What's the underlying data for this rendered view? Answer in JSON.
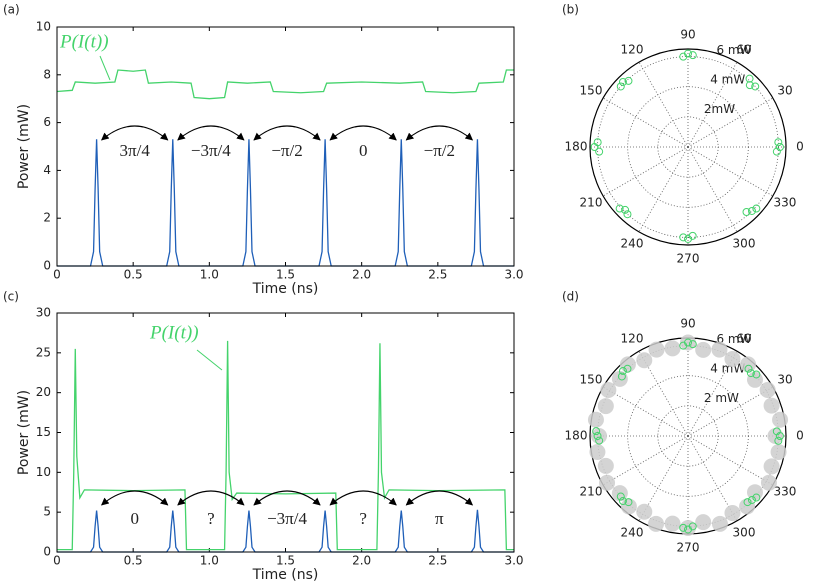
{
  "chart_data": [
    {
      "type": "line",
      "panel": "(a)",
      "xlabel": "Time (ns)",
      "ylabel": "Power (mW)",
      "xlim": [
        0,
        3
      ],
      "ylim": [
        0,
        10
      ],
      "xticks": [
        0,
        0.5,
        {
          "value": 1,
          "label": "1.0"
        },
        1.5,
        {
          "value": 2,
          "label": "2.0"
        },
        2.5,
        {
          "value": 3,
          "label": "3.0"
        }
      ],
      "yticks": [
        0,
        2,
        4,
        6,
        8,
        10
      ],
      "series": [
        {
          "name": "P(I(t))",
          "color": "#44d36b",
          "x": [
            0,
            0.1,
            0.12,
            0.25,
            0.38,
            0.4,
            0.5,
            0.58,
            0.6,
            0.75,
            0.88,
            0.9,
            1.0,
            1.1,
            1.12,
            1.25,
            1.4,
            1.42,
            1.6,
            1.75,
            1.77,
            2.0,
            2.25,
            2.4,
            2.42,
            2.6,
            2.75,
            2.77,
            2.93,
            2.95,
            3.0
          ],
          "values": [
            7.3,
            7.35,
            7.7,
            7.65,
            7.7,
            8.2,
            8.15,
            8.2,
            7.65,
            7.7,
            7.65,
            7.05,
            7.0,
            7.05,
            7.7,
            7.65,
            7.7,
            7.3,
            7.25,
            7.3,
            7.65,
            7.7,
            7.65,
            7.7,
            7.3,
            7.25,
            7.3,
            7.65,
            7.7,
            8.2,
            8.2
          ]
        },
        {
          "color": "#1f5fb8",
          "x": [
            0,
            0.22,
            0.24,
            0.25,
            0.26,
            0.27,
            0.28,
            0.3,
            0.72,
            0.74,
            0.75,
            0.76,
            0.77,
            0.78,
            0.8,
            1.22,
            1.24,
            1.25,
            1.26,
            1.27,
            1.28,
            1.3,
            1.72,
            1.74,
            1.75,
            1.76,
            1.77,
            1.78,
            1.8,
            2.22,
            2.24,
            2.25,
            2.26,
            2.27,
            2.28,
            2.3,
            2.72,
            2.74,
            2.75,
            2.76,
            2.77,
            2.78,
            2.8,
            3.0
          ],
          "values": [
            0,
            0,
            0.6,
            3.2,
            5.3,
            3.2,
            0.6,
            0,
            0,
            0.6,
            3.2,
            5.3,
            3.2,
            0.6,
            0,
            0,
            0.6,
            3.2,
            5.3,
            3.2,
            0.6,
            0,
            0,
            0.6,
            3.2,
            5.3,
            3.2,
            0.6,
            0,
            0,
            0.6,
            3.2,
            5.3,
            3.2,
            0.6,
            0,
            0,
            0.6,
            3.2,
            5.3,
            3.2,
            0.6,
            0,
            0
          ]
        }
      ],
      "annotations": [
        "3π/4",
        "−3π/4",
        "−π/2",
        "0",
        "−π/2"
      ]
    },
    {
      "type": "polar-scatter",
      "panel": "(b)",
      "rlim": [
        0,
        6.5
      ],
      "rticks": [
        {
          "value": 2,
          "label": "2mW"
        },
        {
          "value": 4,
          "label": "4 mW"
        },
        {
          "value": 6,
          "label": "6 mW"
        }
      ],
      "thetaticks": [
        0,
        30,
        60,
        90,
        120,
        150,
        180,
        210,
        240,
        270,
        300,
        330
      ],
      "series": [
        {
          "color": "#44d36b",
          "marker": "open",
          "theta": [
            357,
            0,
            3,
            42,
            45,
            48,
            87,
            90,
            93,
            132,
            135,
            138,
            177,
            180,
            183,
            222,
            225,
            228,
            267,
            270,
            273,
            312,
            315,
            318
          ],
          "r": [
            5.9,
            6.1,
            6.0,
            6.0,
            5.8,
            6.1,
            6.1,
            6.2,
            6.0,
            5.9,
            6.1,
            6.0,
            6.0,
            6.2,
            5.9,
            6.1,
            5.9,
            6.0,
            6.0,
            6.1,
            5.9,
            5.8,
            6.0,
            6.1
          ]
        }
      ]
    },
    {
      "type": "line",
      "panel": "(c)",
      "xlabel": "Time (ns)",
      "ylabel": "Power (mW)",
      "xlim": [
        0,
        3
      ],
      "ylim": [
        0,
        30
      ],
      "xticks": [
        0,
        0.5,
        {
          "value": 1,
          "label": "1.0"
        },
        1.5,
        {
          "value": 2,
          "label": "2.0"
        },
        2.5,
        {
          "value": 3,
          "label": "3.0"
        }
      ],
      "yticks": [
        0,
        5,
        10,
        15,
        20,
        25,
        30
      ],
      "series": [
        {
          "name": "P(I(t))",
          "color": "#44d36b",
          "x": [
            0,
            0.1,
            0.11,
            0.12,
            0.13,
            0.15,
            0.18,
            0.5,
            0.84,
            0.85,
            1.1,
            1.11,
            1.12,
            1.13,
            1.15,
            1.18,
            1.5,
            1.83,
            1.84,
            2.1,
            2.11,
            2.12,
            2.13,
            2.15,
            2.18,
            2.5,
            2.94,
            2.95,
            3.0
          ],
          "values": [
            0.3,
            0.3,
            10,
            25.5,
            12,
            6.8,
            7.8,
            7.7,
            7.8,
            0.3,
            0.3,
            10,
            26.5,
            10,
            6.6,
            7.4,
            7.3,
            7.4,
            0.3,
            0.3,
            10,
            26.2,
            10,
            6.8,
            7.8,
            7.7,
            7.8,
            0.3,
            0.3
          ]
        },
        {
          "color": "#1f5fb8",
          "x": [
            0,
            0.22,
            0.24,
            0.25,
            0.26,
            0.27,
            0.28,
            0.3,
            0.72,
            0.74,
            0.75,
            0.76,
            0.77,
            0.78,
            0.8,
            1.22,
            1.24,
            1.25,
            1.26,
            1.27,
            1.28,
            1.3,
            1.72,
            1.74,
            1.75,
            1.76,
            1.77,
            1.78,
            1.8,
            2.22,
            2.24,
            2.25,
            2.26,
            2.27,
            2.28,
            2.3,
            2.72,
            2.74,
            2.75,
            2.76,
            2.77,
            2.78,
            2.8,
            3.0
          ],
          "values": [
            0,
            0,
            0.6,
            3.2,
            5.2,
            3.2,
            0.6,
            0,
            0,
            0.6,
            3.2,
            5.2,
            3.2,
            0.6,
            0,
            0,
            0.6,
            3.2,
            5.2,
            3.2,
            0.6,
            0,
            0,
            0.6,
            3.2,
            5.2,
            3.2,
            0.6,
            0,
            0,
            0.6,
            3.2,
            5.2,
            3.2,
            0.6,
            0,
            0,
            0.6,
            3.2,
            5.3,
            3.2,
            0.6,
            0,
            0
          ]
        }
      ],
      "annotations": [
        "0",
        "?",
        "−3π/4",
        "?",
        "π"
      ]
    },
    {
      "type": "polar-scatter",
      "panel": "(d)",
      "rlim": [
        0,
        6.5
      ],
      "rticks": [
        {
          "value": 2,
          "label": "2 mW"
        },
        {
          "value": 4,
          "label": "4 mW"
        },
        {
          "value": 6,
          "label": "6 mW"
        }
      ],
      "thetaticks": [
        0,
        30,
        60,
        90,
        120,
        150,
        180,
        210,
        240,
        270,
        300,
        330
      ],
      "series": [
        {
          "color": "#cccccc",
          "marker": "filled",
          "theta": [
            0,
            10,
            20,
            30,
            40,
            50,
            60,
            70,
            80,
            90,
            100,
            110,
            120,
            130,
            140,
            150,
            160,
            170,
            180,
            190,
            200,
            210,
            220,
            230,
            240,
            250,
            260,
            270,
            280,
            290,
            300,
            310,
            320,
            330,
            340,
            350
          ],
          "r": [
            5.8,
            6.2,
            5.9,
            6.1,
            5.8,
            6.2,
            5.9,
            6.1,
            5.8,
            6.2,
            5.9,
            6.1,
            5.8,
            6.2,
            5.9,
            6.1,
            5.8,
            6.2,
            5.9,
            6.1,
            5.8,
            6.2,
            5.9,
            6.1,
            5.8,
            6.2,
            5.9,
            6.1,
            5.8,
            6.2,
            5.9,
            6.1,
            5.8,
            6.2,
            5.9,
            6.1
          ]
        },
        {
          "color": "#44d36b",
          "marker": "open",
          "theta": [
            357,
            0,
            3,
            42,
            45,
            48,
            87,
            90,
            93,
            132,
            135,
            138,
            177,
            180,
            183,
            222,
            225,
            228,
            267,
            270,
            273,
            312,
            315,
            318
          ],
          "r": [
            6.0,
            6.1,
            5.9,
            6.1,
            5.9,
            6.0,
            6.1,
            6.2,
            6.0,
            6.0,
            6.1,
            5.9,
            6.1,
            6.0,
            5.9,
            6.0,
            6.1,
            5.9,
            6.1,
            6.2,
            6.0,
            5.9,
            6.0,
            6.1
          ]
        }
      ]
    }
  ]
}
